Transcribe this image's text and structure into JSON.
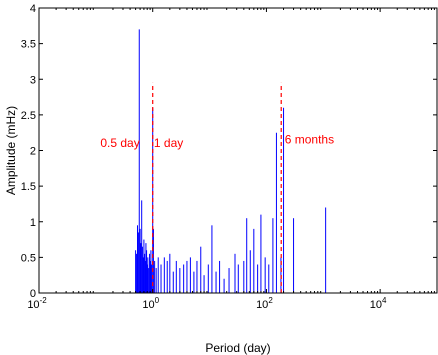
{
  "chart_data": {
    "type": "bar",
    "title": "",
    "xlabel": "Period (day)",
    "ylabel": "Amplitude (mHz)",
    "xscale": "log",
    "xlim": [
      0.01,
      100000
    ],
    "ylim": [
      0,
      4
    ],
    "xticks": [
      {
        "value": 0.01,
        "base": "10",
        "exp": "-2"
      },
      {
        "value": 1,
        "base": "10",
        "exp": "0"
      },
      {
        "value": 100,
        "base": "10",
        "exp": "2"
      },
      {
        "value": 10000,
        "base": "10",
        "exp": "4"
      }
    ],
    "yticks": [
      "0",
      "0.5",
      "1",
      "1.5",
      "2",
      "2.5",
      "3",
      "3.5",
      "4"
    ],
    "grid": false,
    "series_color": "#0000ff",
    "annotation_color": "#ff0000",
    "x": [
      0.5,
      0.52,
      0.54,
      0.56,
      0.58,
      0.6,
      0.62,
      0.64,
      0.66,
      0.68,
      0.7,
      0.72,
      0.74,
      0.76,
      0.78,
      0.8,
      0.82,
      0.85,
      0.88,
      0.9,
      0.93,
      0.96,
      1.0,
      1.03,
      1.08,
      1.15,
      1.25,
      1.4,
      1.6,
      1.8,
      2.0,
      2.3,
      2.6,
      3.0,
      3.5,
      4.0,
      4.6,
      5.3,
      6.0,
      7.0,
      8.0,
      9.5,
      11,
      13,
      15,
      18,
      22,
      28,
      32,
      40,
      45,
      52,
      60,
      70,
      80,
      95,
      110,
      130,
      150,
      180,
      200,
      300,
      1100
    ],
    "values": [
      0.6,
      0.55,
      0.95,
      0.85,
      3.7,
      0.9,
      0.7,
      1.3,
      0.65,
      0.5,
      0.75,
      0.55,
      0.45,
      0.7,
      0.6,
      0.4,
      0.5,
      0.35,
      0.55,
      0.45,
      0.6,
      0.4,
      2.6,
      0.9,
      0.45,
      0.35,
      0.5,
      0.4,
      0.5,
      0.45,
      0.55,
      0.3,
      0.45,
      0.35,
      0.4,
      0.45,
      0.5,
      0.3,
      0.45,
      0.65,
      0.25,
      0.4,
      0.95,
      0.3,
      0.45,
      0.2,
      0.35,
      0.55,
      0.4,
      0.45,
      1.05,
      0.6,
      0.9,
      0.4,
      1.1,
      0.5,
      0.4,
      1.05,
      2.25,
      0.5,
      2.6,
      1.05,
      1.2
    ],
    "annotations": [
      {
        "text": "0.5 day",
        "x": 0.12,
        "y": 2.05,
        "line_x": null
      },
      {
        "text": "1 day",
        "x": 1.05,
        "y": 2.05,
        "line_x": 1
      },
      {
        "text": "6 months",
        "x": 210,
        "y": 2.1,
        "line_x": 182
      }
    ]
  }
}
